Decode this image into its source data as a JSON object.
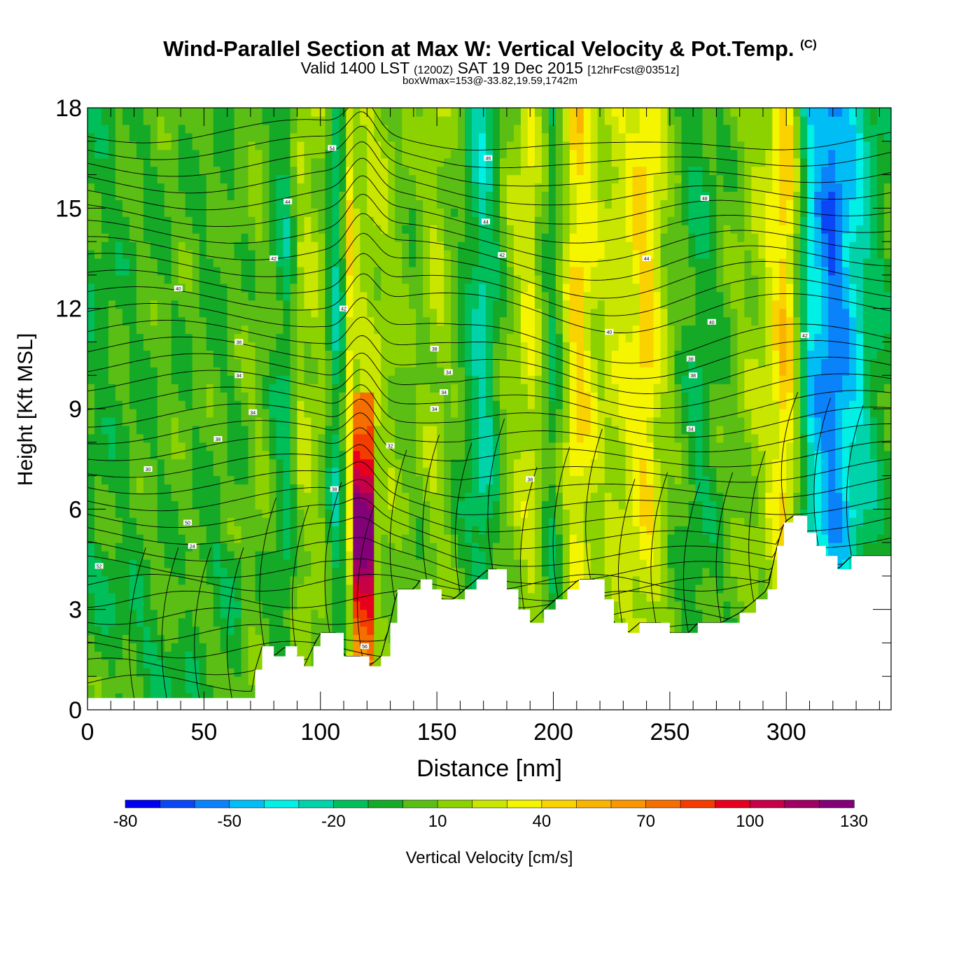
{
  "title": {
    "main": "Wind-Parallel Section at Max W: Vertical Velocity & Pot.Temp.",
    "copyright_mark": "(C)",
    "valid_prefix": "Valid 1400 LST",
    "valid_utc": "(1200Z)",
    "valid_date": "SAT 19 Dec 2015",
    "forecast_info": "[12hrFcst@0351z]",
    "box_info": "boxWmax=153@-33.82,19.59,1742m"
  },
  "chart_data": {
    "type": "heatmap",
    "xlabel": "Distance [nm]",
    "ylabel": "Height [Kft MSL]",
    "xlim": [
      0,
      345
    ],
    "ylim": [
      0,
      18
    ],
    "x_ticks": [
      0,
      50,
      100,
      150,
      200,
      250,
      300
    ],
    "y_ticks": [
      0,
      3,
      6,
      9,
      12,
      15,
      18
    ],
    "colorbar": {
      "label": "Vertical Velocity [cm/s]",
      "min": -80,
      "max": 140,
      "step": 10,
      "tick_labels": [
        -80,
        -50,
        -20,
        10,
        40,
        70,
        100,
        130
      ],
      "colors": [
        "#0000f0",
        "#0a46f5",
        "#0a82fa",
        "#00bef5",
        "#00f0e6",
        "#00d2aa",
        "#00be5a",
        "#14aa28",
        "#5abe14",
        "#8cd200",
        "#c8e600",
        "#f5f500",
        "#fad200",
        "#fab400",
        "#fa9600",
        "#f56e00",
        "#f53c00",
        "#e6001e",
        "#c80046",
        "#a00064",
        "#820078"
      ]
    },
    "terrain_kft": [
      [
        0,
        0.35
      ],
      [
        70,
        0.35
      ],
      [
        72,
        1.2
      ],
      [
        75,
        1.9
      ],
      [
        80,
        1.6
      ],
      [
        85,
        1.9
      ],
      [
        90,
        1.6
      ],
      [
        93,
        1.3
      ],
      [
        97,
        1.9
      ],
      [
        100,
        2.3
      ],
      [
        107,
        2.3
      ],
      [
        110,
        1.6
      ],
      [
        118,
        1.6
      ],
      [
        121,
        1.3
      ],
      [
        126,
        1.6
      ],
      [
        130,
        2.6
      ],
      [
        133,
        3.6
      ],
      [
        140,
        3.6
      ],
      [
        143,
        3.9
      ],
      [
        148,
        3.6
      ],
      [
        152,
        3.3
      ],
      [
        157,
        3.3
      ],
      [
        162,
        3.6
      ],
      [
        167,
        3.9
      ],
      [
        172,
        4.2
      ],
      [
        176,
        4.2
      ],
      [
        180,
        3.6
      ],
      [
        185,
        3.0
      ],
      [
        190,
        2.6
      ],
      [
        196,
        3.0
      ],
      [
        201,
        3.3
      ],
      [
        206,
        3.6
      ],
      [
        211,
        3.9
      ],
      [
        218,
        3.9
      ],
      [
        222,
        3.3
      ],
      [
        226,
        2.6
      ],
      [
        232,
        2.3
      ],
      [
        237,
        2.6
      ],
      [
        246,
        2.6
      ],
      [
        250,
        2.3
      ],
      [
        258,
        2.3
      ],
      [
        262,
        2.6
      ],
      [
        272,
        2.6
      ],
      [
        280,
        2.9
      ],
      [
        287,
        3.3
      ],
      [
        292,
        3.6
      ],
      [
        296,
        4.9
      ],
      [
        299,
        5.6
      ],
      [
        303,
        5.8
      ],
      [
        309,
        5.3
      ],
      [
        313,
        4.9
      ],
      [
        317,
        4.6
      ],
      [
        322,
        4.2
      ],
      [
        328,
        4.6
      ],
      [
        345,
        4.6
      ]
    ],
    "bands": [
      {
        "x": 0,
        "v": -5
      },
      {
        "x": 20,
        "v": 0
      },
      {
        "x": 40,
        "v": 3
      },
      {
        "x": 60,
        "v": 0
      },
      {
        "x": 75,
        "v": 10
      },
      {
        "x": 85,
        "v": -15
      },
      {
        "x": 92,
        "v": 20
      },
      {
        "x": 100,
        "v": 15
      },
      {
        "x": 108,
        "v": -25
      },
      {
        "x": 118,
        "v": 110
      },
      {
        "x": 122,
        "v": 20
      },
      {
        "x": 130,
        "v": 15
      },
      {
        "x": 140,
        "v": 5
      },
      {
        "x": 150,
        "v": 20
      },
      {
        "x": 160,
        "v": 0
      },
      {
        "x": 170,
        "v": -25
      },
      {
        "x": 180,
        "v": 10
      },
      {
        "x": 190,
        "v": 30
      },
      {
        "x": 200,
        "v": -10
      },
      {
        "x": 210,
        "v": 45
      },
      {
        "x": 220,
        "v": 20
      },
      {
        "x": 232,
        "v": 30
      },
      {
        "x": 240,
        "v": 45
      },
      {
        "x": 250,
        "v": 10
      },
      {
        "x": 262,
        "v": -10
      },
      {
        "x": 275,
        "v": 5
      },
      {
        "x": 290,
        "v": 20
      },
      {
        "x": 300,
        "v": 50
      },
      {
        "x": 310,
        "v": -35
      },
      {
        "x": 320,
        "v": -60
      },
      {
        "x": 335,
        "v": -20
      },
      {
        "x": 345,
        "v": 0
      }
    ],
    "isentrope_labels": [
      {
        "x": 5,
        "y": 4.3,
        "text": "52"
      },
      {
        "x": 26,
        "y": 7.2,
        "text": "30"
      },
      {
        "x": 43,
        "y": 5.6,
        "text": "50"
      },
      {
        "x": 45,
        "y": 4.9,
        "text": "24"
      },
      {
        "x": 56,
        "y": 8.1,
        "text": "38"
      },
      {
        "x": 65,
        "y": 10.0,
        "text": "34"
      },
      {
        "x": 65,
        "y": 11.0,
        "text": "38"
      },
      {
        "x": 71,
        "y": 8.9,
        "text": "34"
      },
      {
        "x": 39,
        "y": 12.6,
        "text": "40"
      },
      {
        "x": 80,
        "y": 13.5,
        "text": "42"
      },
      {
        "x": 86,
        "y": 15.2,
        "text": "44"
      },
      {
        "x": 105,
        "y": 16.8,
        "text": "54"
      },
      {
        "x": 110,
        "y": 12.0,
        "text": "42"
      },
      {
        "x": 106,
        "y": 6.6,
        "text": "38"
      },
      {
        "x": 119,
        "y": 1.9,
        "text": "56"
      },
      {
        "x": 130,
        "y": 7.9,
        "text": "32"
      },
      {
        "x": 149,
        "y": 10.8,
        "text": "38"
      },
      {
        "x": 149,
        "y": 9.0,
        "text": "34"
      },
      {
        "x": 153,
        "y": 9.5,
        "text": "34"
      },
      {
        "x": 155,
        "y": 10.1,
        "text": "34"
      },
      {
        "x": 171,
        "y": 14.6,
        "text": "44"
      },
      {
        "x": 172,
        "y": 16.5,
        "text": "46"
      },
      {
        "x": 178,
        "y": 13.6,
        "text": "42"
      },
      {
        "x": 190,
        "y": 6.9,
        "text": "38"
      },
      {
        "x": 224,
        "y": 11.3,
        "text": "40"
      },
      {
        "x": 240,
        "y": 13.5,
        "text": "44"
      },
      {
        "x": 259,
        "y": 10.5,
        "text": "38"
      },
      {
        "x": 260,
        "y": 10.0,
        "text": "38"
      },
      {
        "x": 259,
        "y": 8.4,
        "text": "34"
      },
      {
        "x": 268,
        "y": 11.6,
        "text": "40"
      },
      {
        "x": 265,
        "y": 15.3,
        "text": "48"
      },
      {
        "x": 308,
        "y": 11.2,
        "text": "42"
      }
    ]
  }
}
